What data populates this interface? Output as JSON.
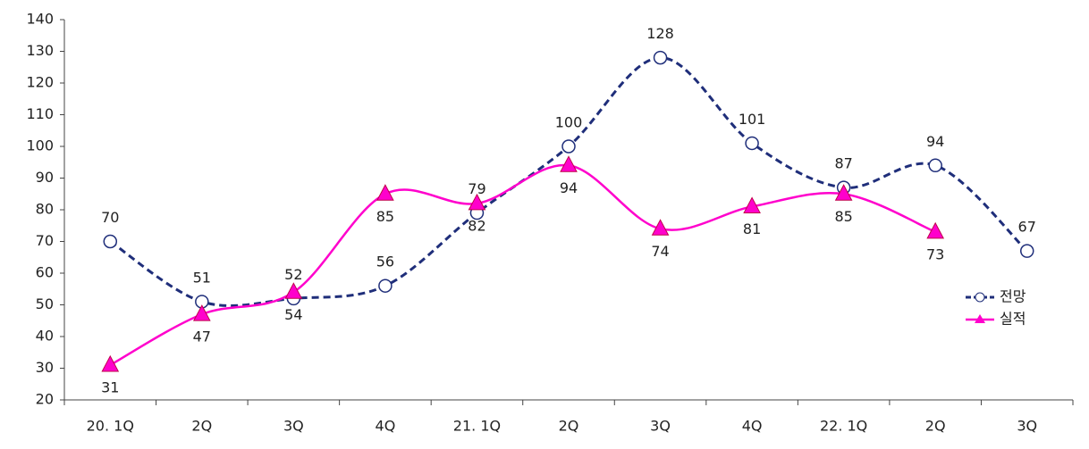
{
  "chart_data": {
    "type": "line",
    "categories": [
      "20. 1Q",
      "2Q",
      "3Q",
      "4Q",
      "21. 1Q",
      "2Q",
      "3Q",
      "4Q",
      "22. 1Q",
      "2Q",
      "3Q"
    ],
    "series": [
      {
        "name": "전망",
        "color": "#1f2e7a",
        "values": [
          70,
          51,
          52,
          56,
          79,
          100,
          128,
          101,
          87,
          94,
          67
        ]
      },
      {
        "name": "실적",
        "color": "#ff00cc",
        "values": [
          31,
          47,
          54,
          85,
          82,
          94,
          74,
          81,
          85,
          73,
          null
        ]
      }
    ],
    "ylim": [
      20,
      140
    ],
    "yticks": [
      20,
      30,
      40,
      50,
      60,
      70,
      80,
      90,
      100,
      110,
      120,
      130,
      140
    ],
    "grid": false,
    "legend": "right"
  }
}
